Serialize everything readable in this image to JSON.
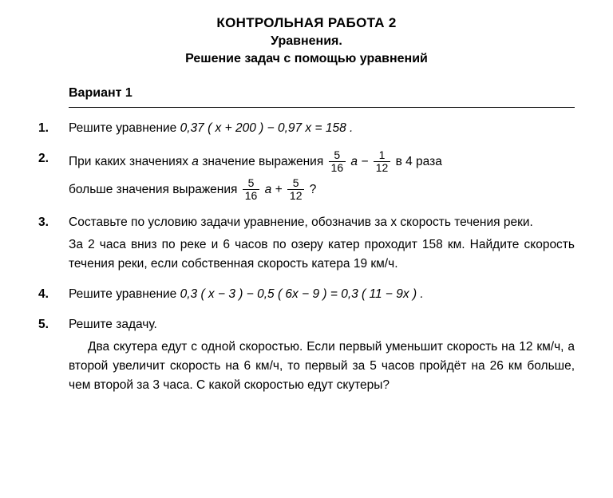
{
  "title": {
    "line1": "КОНТРОЛЬНАЯ РАБОТА 2",
    "line2": "Уравнения.",
    "line3": "Решение задач с помощью уравнений"
  },
  "variant": "Вариант 1",
  "problems": {
    "p1": {
      "num": "1.",
      "text_a": "Решите уравнение ",
      "eq": "0,37 ( x + 200 ) − 0,97 x = 158 ."
    },
    "p2": {
      "num": "2.",
      "t1": "При каких значениях ",
      "var": "a",
      "t2": " значение выражения ",
      "f1n": "5",
      "f1d": "16",
      "mid1": " a − ",
      "f2n": "1",
      "f2d": "12",
      "t3": " в 4 раза",
      "t4": "больше значения выражения ",
      "f3n": "5",
      "f3d": "16",
      "mid2": " a + ",
      "f4n": "5",
      "f4d": "12",
      "q": " ?"
    },
    "p3": {
      "num": "3.",
      "l1": "Составьте по условию задачи уравнение, обозначив за x ско­рость течения реки.",
      "l2": "За 2 часа вниз по реке и 6 часов по озеру катер проходит 158 км. Найдите скорость течения реки, если собственная скорость катера 19 км/ч."
    },
    "p4": {
      "num": "4.",
      "text_a": "Решите уравнение ",
      "eq": "0,3 ( x − 3 ) − 0,5 ( 6x − 9 ) = 0,3 ( 11 − 9x ) ."
    },
    "p5": {
      "num": "5.",
      "head": "Решите задачу.",
      "body": "Два скутера едут с одной скоростью. Если первый уменьшит скорость на 12 км/ч, а второй увеличит скорость на 6 км/ч, то первый за 5 часов пройдёт на 26 км больше, чем второй за 3 ча­са. С какой скоростью едут скутеры?"
    }
  }
}
